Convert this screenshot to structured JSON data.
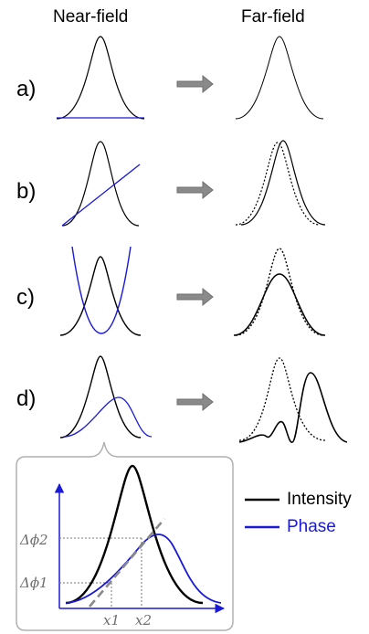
{
  "headers": {
    "near": "Near-field",
    "far": "Far-field"
  },
  "rows": [
    {
      "label": "a)"
    },
    {
      "label": "b)"
    },
    {
      "label": "c)"
    },
    {
      "label": "d)"
    }
  ],
  "legend": [
    {
      "label": "Intensity",
      "color": "#000000"
    },
    {
      "label": "Phase",
      "color": "#1a1ad6"
    }
  ],
  "inset": {
    "y_labels": [
      "Δϕ2",
      "Δϕ1"
    ],
    "x_labels": [
      "x1",
      "x2"
    ]
  }
}
